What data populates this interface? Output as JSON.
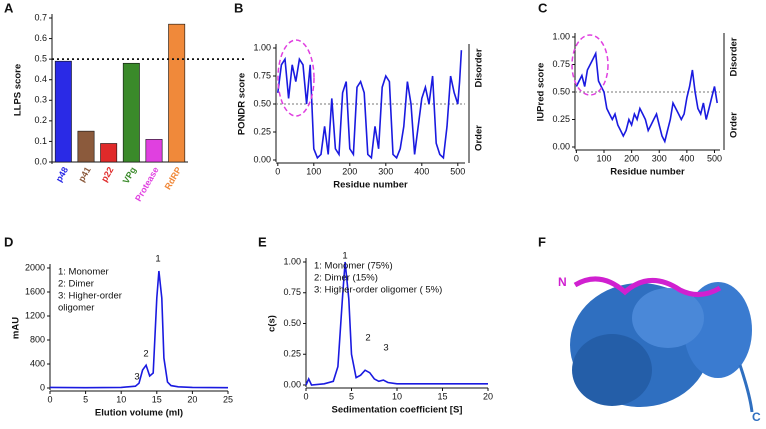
{
  "panel_labels": [
    "A",
    "B",
    "C",
    "D",
    "E",
    "F"
  ],
  "structure": {
    "n_label": "N",
    "c_label": "C"
  },
  "chart_data": [
    {
      "type": "bar",
      "ylabel": "LLPS score",
      "categories": [
        "p48",
        "p41",
        "p22",
        "VPg",
        "Protease",
        "RdRP"
      ],
      "values": [
        0.49,
        0.15,
        0.09,
        0.48,
        0.11,
        0.67
      ],
      "colors": [
        "#2a2ae6",
        "#8b5a3c",
        "#e02a2a",
        "#3a8a2a",
        "#e040e0",
        "#f0893a"
      ],
      "ylim": [
        0,
        0.7
      ],
      "yticks": [
        {
          "value": 0,
          "label": "0.0"
        },
        0.1,
        0.2,
        0.3,
        0.4,
        0.5,
        0.6,
        0.7
      ],
      "threshold": 0.5
    },
    {
      "type": "line",
      "xlabel": "Residue number",
      "ylabel": "PONDR score",
      "right_labels": [
        "Disorder",
        "Order"
      ],
      "color": "#1a1ae0",
      "threshold": 0.5,
      "xlim": [
        -5,
        520
      ],
      "ylim": [
        0,
        1
      ],
      "xticks": [
        0,
        100,
        200,
        300,
        400,
        500
      ],
      "yticks": [
        {
          "value": 0,
          "label": "0.00"
        },
        0.25,
        {
          "value": 0.5,
          "label": "0.50"
        },
        0.75,
        {
          "value": 1,
          "label": "1.00"
        }
      ],
      "x": [
        0,
        10,
        20,
        30,
        40,
        50,
        60,
        70,
        80,
        90,
        100,
        110,
        120,
        130,
        140,
        150,
        160,
        170,
        180,
        190,
        200,
        210,
        220,
        230,
        240,
        250,
        260,
        270,
        280,
        290,
        300,
        310,
        320,
        330,
        340,
        350,
        360,
        370,
        380,
        390,
        400,
        410,
        420,
        430,
        440,
        450,
        460,
        470,
        480,
        490,
        500,
        505,
        510
      ],
      "values": [
        0.6,
        0.85,
        0.9,
        0.55,
        0.85,
        0.7,
        0.9,
        0.85,
        0.5,
        0.85,
        0.1,
        0.02,
        0.05,
        0.3,
        0.05,
        0.55,
        0.1,
        0.05,
        0.6,
        0.7,
        0.1,
        0.05,
        0.65,
        0.7,
        0.6,
        0.05,
        0.02,
        0.3,
        0.1,
        0.65,
        0.75,
        0.7,
        0.05,
        0.02,
        0.1,
        0.3,
        0.7,
        0.5,
        0.05,
        0.3,
        0.55,
        0.65,
        0.5,
        0.75,
        0.15,
        0.05,
        0.02,
        0.3,
        0.75,
        0.6,
        0.5,
        0.7,
        0.98
      ]
    },
    {
      "type": "line",
      "xlabel": "Residue number",
      "ylabel": "IUPred score",
      "right_labels": [
        "Disorder",
        "Order"
      ],
      "color": "#1a1ae0",
      "threshold": 0.5,
      "xlim": [
        -5,
        520
      ],
      "ylim": [
        0,
        1
      ],
      "xticks": [
        0,
        100,
        200,
        300,
        400,
        500
      ],
      "yticks": [
        {
          "value": 0,
          "label": "0.00"
        },
        0.25,
        {
          "value": 0.5,
          "label": "0.50"
        },
        0.75,
        {
          "value": 1,
          "label": "1.00"
        }
      ],
      "x": [
        0,
        10,
        20,
        30,
        40,
        50,
        60,
        70,
        80,
        90,
        100,
        110,
        120,
        130,
        140,
        150,
        160,
        170,
        180,
        190,
        200,
        210,
        220,
        230,
        240,
        250,
        260,
        270,
        280,
        290,
        300,
        310,
        320,
        330,
        340,
        350,
        360,
        370,
        380,
        390,
        400,
        410,
        420,
        430,
        440,
        450,
        460,
        470,
        480,
        490,
        500,
        510
      ],
      "values": [
        0.55,
        0.6,
        0.65,
        0.55,
        0.7,
        0.75,
        0.8,
        0.85,
        0.6,
        0.55,
        0.5,
        0.35,
        0.3,
        0.25,
        0.3,
        0.2,
        0.15,
        0.1,
        0.15,
        0.25,
        0.2,
        0.3,
        0.25,
        0.35,
        0.3,
        0.25,
        0.15,
        0.2,
        0.25,
        0.3,
        0.2,
        0.1,
        0.05,
        0.15,
        0.25,
        0.4,
        0.35,
        0.3,
        0.25,
        0.3,
        0.45,
        0.55,
        0.7,
        0.5,
        0.35,
        0.3,
        0.4,
        0.25,
        0.35,
        0.45,
        0.55,
        0.4
      ]
    },
    {
      "type": "line",
      "xlabel": "Elution volume (ml)",
      "ylabel": "mAU",
      "color": "#1a1ae0",
      "notes": [
        "1: Monomer",
        "2: Dimer",
        "3: Higher-order",
        "oligomer"
      ],
      "peak_labels": [
        "1",
        "2",
        "3"
      ],
      "xlim": [
        0,
        25
      ],
      "ylim": [
        0,
        2000
      ],
      "xticks": [
        0,
        5,
        10,
        15,
        20,
        25
      ],
      "yticks": [
        0,
        400,
        800,
        1200,
        1600,
        2000
      ],
      "x": [
        0,
        5,
        10,
        12,
        12.5,
        13,
        13.5,
        14,
        14.5,
        15,
        15.3,
        15.7,
        16,
        16.5,
        17,
        18,
        20,
        25
      ],
      "values": [
        10,
        5,
        10,
        30,
        80,
        300,
        380,
        200,
        250,
        1500,
        1950,
        1500,
        500,
        100,
        40,
        20,
        10,
        5
      ]
    },
    {
      "type": "line",
      "xlabel": "Sedimentation coefficient [S]",
      "ylabel": "c(s)",
      "color": "#1a1ae0",
      "notes": [
        "1: Monomer (75%)",
        "2: Dimer (15%)",
        "3: Higher-order oligomer ( 5%)"
      ],
      "peak_labels": [
        "1",
        "2",
        "3"
      ],
      "xlim": [
        0,
        20
      ],
      "ylim": [
        0,
        1
      ],
      "xticks": [
        0,
        5,
        10,
        15,
        20
      ],
      "yticks": [
        {
          "value": 0,
          "label": "0.00"
        },
        0.25,
        {
          "value": 0.5,
          "label": "0.50"
        },
        0.75,
        {
          "value": 1,
          "label": "1.00"
        }
      ],
      "x": [
        0,
        0.3,
        0.6,
        2,
        3,
        3.5,
        4,
        4.3,
        4.7,
        5,
        5.5,
        6,
        6.5,
        7,
        7.5,
        8,
        8.5,
        9,
        10,
        15,
        20
      ],
      "values": [
        0,
        0.05,
        0,
        0.01,
        0.03,
        0.15,
        0.7,
        1,
        0.7,
        0.25,
        0.06,
        0.08,
        0.12,
        0.1,
        0.05,
        0.03,
        0.04,
        0.02,
        0.01,
        0.01,
        0.01
      ]
    }
  ]
}
